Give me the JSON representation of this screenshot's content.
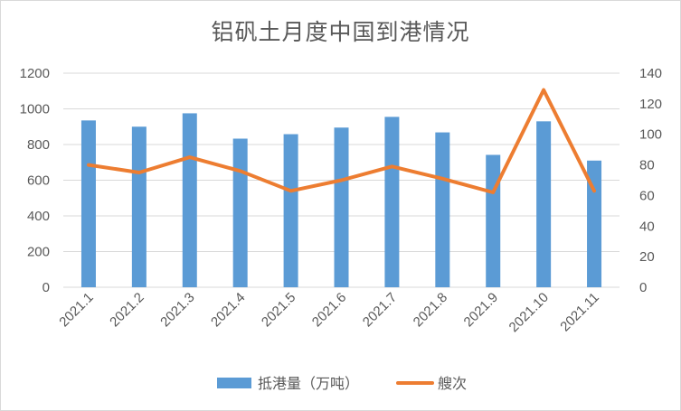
{
  "chart_data": {
    "type": "bar",
    "title": "铝矾土月度中国到港情况",
    "categories": [
      "2021.1",
      "2021.2",
      "2021.3",
      "2021.4",
      "2021.5",
      "2021.6",
      "2021.7",
      "2021.8",
      "2021.9",
      "2021.10",
      "2021.11"
    ],
    "series": [
      {
        "name": "抵港量（万吨）",
        "type": "bar",
        "axis": "left",
        "color": "#5b9bd5",
        "values": [
          935,
          900,
          975,
          833,
          858,
          895,
          955,
          868,
          742,
          930,
          710
        ]
      },
      {
        "name": "艘次",
        "type": "line",
        "axis": "right",
        "color": "#ed7d31",
        "values": [
          80,
          75,
          85,
          76,
          63,
          70,
          79,
          71,
          62,
          129,
          63
        ]
      }
    ],
    "ylim": [
      0,
      1200
    ],
    "yticks": [
      0,
      200,
      400,
      600,
      800,
      1000,
      1200
    ],
    "y2lim": [
      0,
      140
    ],
    "y2ticks": [
      0,
      20,
      40,
      60,
      80,
      100,
      120,
      140
    ],
    "grid": true,
    "legend": "bottom"
  }
}
